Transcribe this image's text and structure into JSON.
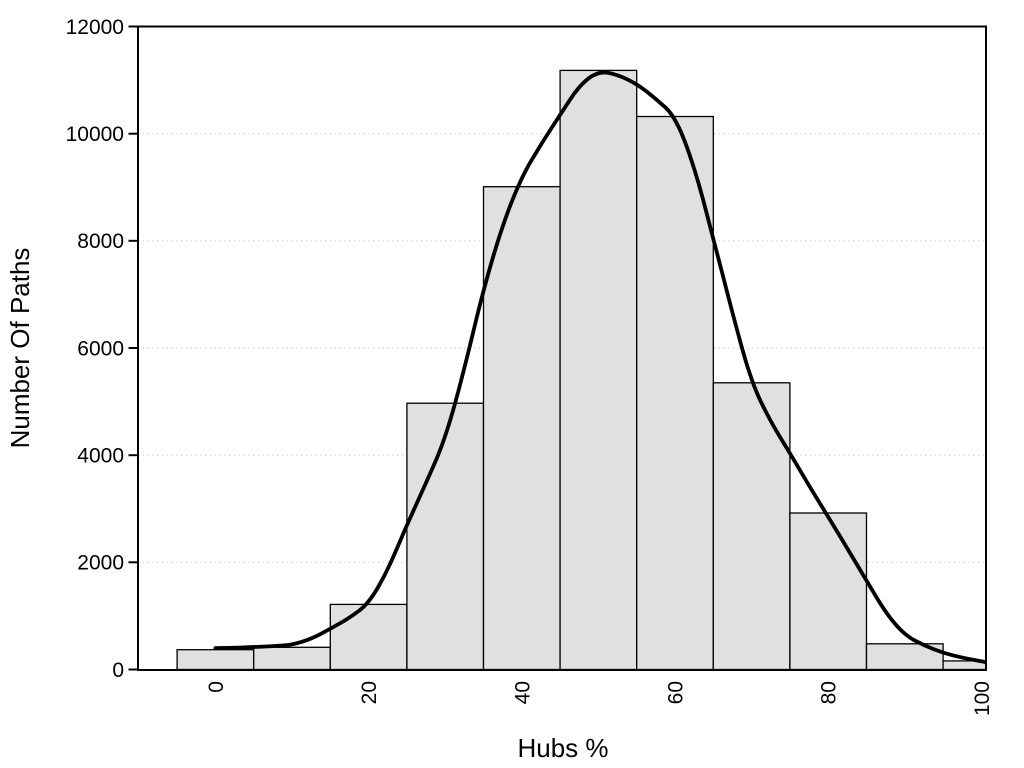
{
  "figure": {
    "background": "#ffffff"
  },
  "chart_data": {
    "type": "bar",
    "subtype": "histogram-with-density-curve",
    "title": "",
    "xlabel": "Hubs %",
    "ylabel": "Number Of Paths",
    "xlim": [
      -10.1,
      100.6
    ],
    "ylim": [
      0,
      12000
    ],
    "x_ticks": [
      0,
      20,
      40,
      60,
      80,
      100
    ],
    "x_tick_labels": [
      "0",
      "20",
      "40",
      "60",
      "80",
      "100"
    ],
    "x_tick_label_rotation_deg": -90,
    "y_ticks": [
      0,
      2000,
      4000,
      6000,
      8000,
      10000,
      12000
    ],
    "y_tick_labels": [
      "0",
      "2000",
      "4000",
      "6000",
      "8000",
      "10000",
      "12000"
    ],
    "grid": "horizontal-dotted",
    "legend": "none",
    "bin_width": 10,
    "bar_centers": [
      0,
      10,
      20,
      30,
      40,
      50,
      60,
      70,
      80,
      90,
      100
    ],
    "bar_values": [
      370,
      415,
      1215,
      4970,
      9010,
      11180,
      10320,
      5350,
      2920,
      480,
      160
    ],
    "density_curve": {
      "x": [
        0,
        2.5,
        5,
        7.5,
        10,
        12.5,
        15,
        17.5,
        20,
        22.5,
        25,
        27.5,
        30,
        32.5,
        35,
        37.5,
        40,
        42.5,
        45,
        47.5,
        50,
        52.5,
        55,
        57.5,
        60,
        62.5,
        65,
        67.5,
        70,
        72.5,
        75,
        77.5,
        80,
        82.5,
        85,
        87.5,
        90,
        92.5,
        95,
        97.5,
        100.5
      ],
      "y": [
        400,
        405,
        420,
        435,
        460,
        570,
        760,
        960,
        1230,
        1850,
        2700,
        3480,
        4300,
        5600,
        7100,
        8300,
        9200,
        9800,
        10350,
        10900,
        11170,
        11100,
        10930,
        10650,
        10330,
        9400,
        8050,
        6650,
        5350,
        4620,
        4040,
        3430,
        2850,
        2260,
        1660,
        1060,
        640,
        450,
        310,
        220,
        140
      ]
    },
    "colors": {
      "bar_fill": "#e0e0e0",
      "bar_stroke": "#000000",
      "curve": "#000000",
      "grid": "#c6c6c6",
      "frame": "#000000",
      "text": "#000000"
    }
  }
}
